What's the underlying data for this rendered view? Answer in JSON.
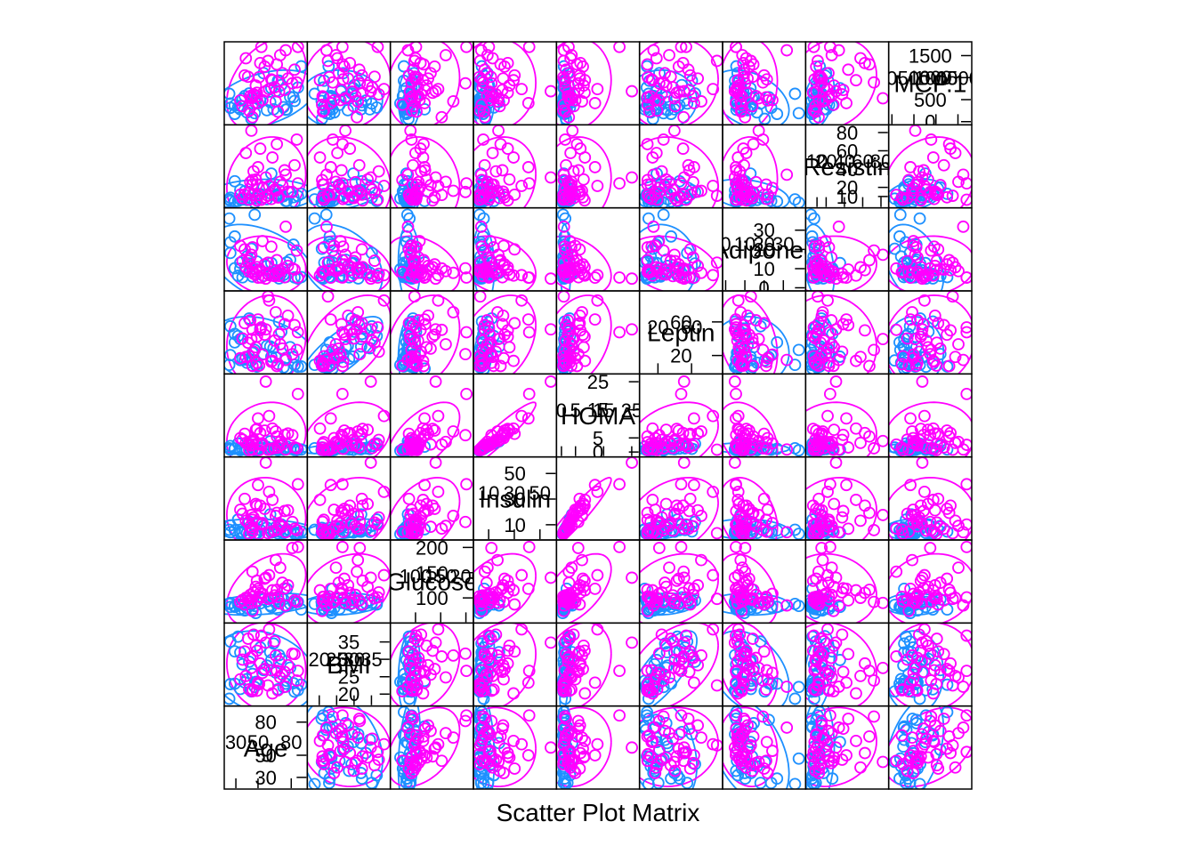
{
  "chart_data": {
    "type": "scatter",
    "title": "Scatter Plot Matrix",
    "variables": [
      "Age",
      "BMI",
      "Glucose",
      "Insulin",
      "HOMA",
      "Leptin",
      "Adiponectin",
      "Resistin",
      "MCP.1"
    ],
    "diagonal_labels": [
      "Age",
      "BMI",
      "Glucose",
      "Insulin",
      "HOMA",
      "Leptin",
      "Adiponec",
      "Resistin",
      "MCP.1"
    ],
    "ranges": [
      [
        24,
        90
      ],
      [
        18,
        39
      ],
      [
        60,
        205
      ],
      [
        2,
        59
      ],
      [
        0,
        26
      ],
      [
        4,
        91
      ],
      [
        1,
        39
      ],
      [
        3,
        83
      ],
      [
        40,
        1700
      ]
    ],
    "ticks": [
      [
        30,
        50,
        80
      ],
      [
        20,
        25,
        30,
        35
      ],
      [
        100,
        150,
        200
      ],
      [
        10,
        30,
        50
      ],
      [
        0,
        5,
        15,
        25
      ],
      [
        20,
        60
      ],
      [
        0,
        10,
        20,
        30
      ],
      [
        10,
        20,
        40,
        60,
        80
      ],
      [
        0,
        500,
        1000,
        1500
      ]
    ],
    "grid": false,
    "ellipses": true,
    "series": [
      {
        "name": "",
        "color": "#1E90FF",
        "points": [
          [
            48,
            23.5,
            70,
            2.707,
            0.467,
            8.81,
            9.702,
            7.996,
            417.1
          ],
          [
            83,
            20.69,
            92,
            3.115,
            0.707,
            8.84,
            5.429,
            4.064,
            468.8
          ],
          [
            82,
            23.12,
            91,
            4.498,
            1.01,
            17.94,
            22.43,
            9.278,
            554.7
          ],
          [
            68,
            21.37,
            77,
            3.226,
            0.613,
            9.88,
            7.169,
            12.77,
            928.2
          ],
          [
            86,
            21.11,
            92,
            3.549,
            0.805,
            6.7,
            4.82,
            10.57,
            773.9
          ],
          [
            49,
            22.85,
            92,
            3.226,
            0.732,
            6.83,
            13.68,
            10.32,
            530.4
          ],
          [
            89,
            22.7,
            77,
            4.69,
            0.891,
            6.96,
            5.59,
            12.93,
            1256
          ],
          [
            76,
            23.8,
            118,
            6.47,
            1.883,
            4.31,
            13.25,
            5.1,
            280
          ],
          [
            73,
            22,
            97,
            3.35,
            0.8,
            5.81,
            6.7,
            10.2,
            328
          ],
          [
            75,
            23,
            83,
            4.95,
            1.01,
            17.13,
            5.62,
            5.1,
            270
          ],
          [
            34,
            21.47,
            78,
            3.47,
            0.66,
            14.57,
            13.11,
            6.92,
            354.6
          ],
          [
            29,
            23.01,
            82,
            5.66,
            1.14,
            35.59,
            26.72,
            4.58,
            174.8
          ],
          [
            25,
            22.86,
            82,
            4.09,
            0.82,
            20.45,
            23.67,
            5.14,
            313.7
          ],
          [
            24,
            18.67,
            88,
            6.11,
            1.33,
            8.87,
            36.06,
            6.85,
            632.2
          ],
          [
            38,
            23.34,
            75,
            5.78,
            1.07,
            15.12,
            8.42,
            15.72,
            581.3
          ],
          [
            44,
            20.76,
            86,
            7.55,
            1.6,
            14.09,
            20.32,
            7.64,
            63.6
          ],
          [
            47,
            22.03,
            84,
            2.87,
            0.59,
            26.65,
            38.04,
            3.32,
            191.7
          ],
          [
            61,
            32.04,
            85,
            18.08,
            3.79,
            30.77,
            7.78,
            13.68,
            444.4
          ],
          [
            64,
            34.53,
            95,
            4.43,
            1.04,
            28.65,
            7.86,
            20.36,
            280
          ],
          [
            32,
            36.51,
            87,
            14.03,
            3.01,
            43.21,
            6.34,
            5.13,
            320
          ],
          [
            36,
            28.57,
            86,
            4.35,
            0.92,
            15.95,
            5.47,
            6.71,
            520
          ],
          [
            34,
            31.98,
            87,
            4.53,
            0.97,
            39.58,
            9.92,
            17.17,
            280
          ],
          [
            29,
            32.27,
            84,
            5.81,
            1.2,
            45.62,
            10.2,
            26.71,
            370
          ],
          [
            25,
            35.1,
            90,
            9.55,
            2.12,
            54.78,
            18.14,
            8.65,
            410
          ],
          [
            42,
            29.3,
            95,
            12.31,
            2.89,
            64.1,
            12.7,
            14.8,
            640
          ],
          [
            66,
            26.2,
            90,
            8.1,
            1.8,
            17.8,
            9.1,
            11.3,
            690
          ],
          [
            45,
            25.8,
            78,
            6.3,
            1.2,
            23.2,
            5.9,
            23.2,
            380
          ],
          [
            58,
            28.2,
            93,
            7.8,
            1.78,
            31.5,
            11.4,
            7.1,
            260
          ],
          [
            71,
            30.1,
            101,
            10.2,
            2.5,
            48.3,
            7.5,
            9.7,
            830
          ],
          [
            52,
            33.4,
            89,
            5.9,
            1.3,
            52.1,
            9.4,
            12.6,
            480
          ],
          [
            40,
            24.3,
            80,
            3.6,
            0.71,
            11.4,
            16.3,
            6.2,
            210
          ],
          [
            55,
            26.9,
            97,
            9.1,
            2.18,
            21.7,
            6.2,
            19.9,
            1100
          ],
          [
            79,
            27.6,
            88,
            5.1,
            1.1,
            29.9,
            14.6,
            14.2,
            560
          ],
          [
            62,
            29.8,
            82,
            3.9,
            0.8,
            18.6,
            12.9,
            35.1,
            760
          ],
          [
            69,
            31.2,
            94,
            4.8,
            1.12,
            60.4,
            4.9,
            16.8,
            930
          ]
        ]
      },
      {
        "name": "",
        "color": "#FF00FF",
        "points": [
          [
            45,
            21.3,
            102,
            13.85,
            3.49,
            7.65,
            21.06,
            23.03,
            552.4
          ],
          [
            45,
            20.83,
            74,
            4.56,
            0.83,
            7.75,
            8.24,
            28.03,
            382.9
          ],
          [
            49,
            20.96,
            94,
            12.31,
            2.85,
            11.24,
            8.41,
            23.12,
            573.6
          ],
          [
            34,
            24.24,
            92,
            21.7,
            4.92,
            16.74,
            21.82,
            12.07,
            481.9
          ],
          [
            42,
            21.36,
            93,
            2.999,
            0.688,
            19.08,
            8.46,
            6.59,
            249.9
          ],
          [
            68,
            21.08,
            102,
            6.2,
            1.56,
            9.7,
            8.04,
            8.89,
            225.9
          ],
          [
            51,
            22.89,
            103,
            2.74,
            0.697,
            8.01,
            9.35,
            11.55,
            1010
          ],
          [
            62,
            26.84,
            100,
            4.53,
            1.117,
            12.45,
            21.42,
            7.32,
            960
          ],
          [
            38,
            32.25,
            87,
            30.21,
            6.48,
            58.46,
            20.0,
            11.97,
            1050
          ],
          [
            69,
            29.4,
            89,
            10.7,
            2.35,
            45.27,
            6.2,
            9.2,
            680
          ],
          [
            49,
            32.46,
            134,
            24.89,
            8.22,
            42.38,
            10.79,
            5.77,
            656.4
          ],
          [
            53,
            36.79,
            101,
            10.18,
            2.54,
            53.5,
            5.36,
            6.47,
            1698
          ],
          [
            86,
            26.67,
            201,
            41.61,
            20.63,
            47.65,
            5.36,
            24.37,
            1698
          ],
          [
            81,
            31.64,
            199,
            12.16,
            5.97,
            21.57,
            10.15,
            14.92,
            870
          ],
          [
            45,
            30.82,
            152,
            7.01,
            2.63,
            50.53,
            10.06,
            11.73,
            99.6
          ],
          [
            67,
            26.7,
            116,
            19.3,
            5.53,
            7.48,
            14.4,
            67.31,
            1300
          ],
          [
            50,
            23.3,
            118,
            41.0,
            11.94,
            62.9,
            5.3,
            42.1,
            420
          ],
          [
            72,
            25.6,
            130,
            8.4,
            2.69,
            28.2,
            9.7,
            22.5,
            1100
          ],
          [
            65,
            35.2,
            105,
            5.4,
            1.4,
            37.8,
            6.1,
            17.6,
            780
          ],
          [
            57,
            34.8,
            140,
            58.46,
            25.05,
            51.1,
            4.8,
            30.8,
            690
          ],
          [
            44,
            27.5,
            90,
            17.6,
            3.9,
            39.6,
            17.2,
            82.1,
            530
          ],
          [
            77,
            28.3,
            125,
            21.3,
            6.57,
            67.4,
            11.4,
            15.3,
            980
          ],
          [
            59,
            22.5,
            98,
            3.4,
            0.82,
            90.3,
            13.1,
            10.8,
            1380
          ],
          [
            46,
            37.1,
            111,
            15.7,
            4.3,
            24.5,
            7.3,
            37.5,
            620
          ],
          [
            83,
            31.5,
            95,
            6.9,
            1.62,
            56.2,
            9.5,
            44.2,
            1180
          ],
          [
            63,
            20.2,
            115,
            29.4,
            8.34,
            13.6,
            6.4,
            52.7,
            940
          ],
          [
            54,
            26.1,
            108,
            11.3,
            3.01,
            21.1,
            24.3,
            19.4,
            490
          ],
          [
            70,
            24.8,
            160,
            9.1,
            3.59,
            33.4,
            8.7,
            26.1,
            1510
          ],
          [
            36,
            29.9,
            96,
            18.6,
            4.4,
            40.3,
            13.9,
            8.3,
            350
          ],
          [
            48,
            33.9,
            122,
            26.2,
            7.89,
            29.8,
            6.9,
            28.6,
            820
          ],
          [
            75,
            22.1,
            85,
            4.2,
            0.88,
            14.7,
            31.8,
            33.9,
            1620
          ],
          [
            60,
            38.6,
            145,
            35.7,
            12.8,
            85.5,
            6.6,
            21.6,
            740
          ],
          [
            39,
            25.2,
            100,
            13.1,
            3.23,
            18.3,
            10.7,
            57.6,
            1440
          ],
          [
            56,
            27.2,
            138,
            22.4,
            7.62,
            44.8,
            12.2,
            9.1,
            1250
          ],
          [
            43,
            30.4,
            106,
            8.8,
            2.3,
            61.9,
            15.8,
            25.7,
            580
          ],
          [
            85,
            23.9,
            92,
            5.8,
            1.31,
            26.6,
            19.4,
            72.3,
            890
          ],
          [
            66,
            31.1,
            175,
            16.9,
            7.3,
            71.5,
            7.8,
            16.2,
            460
          ],
          [
            52,
            28.8,
            110,
            24.9,
            6.75,
            49.9,
            9.2,
            62.4,
            1330
          ],
          [
            41,
            35.9,
            99,
            11.7,
            2.86,
            35.2,
            14.1,
            13.9,
            1020
          ],
          [
            74,
            26.4,
            119,
            20.7,
            6.08,
            57.3,
            5.5,
            38.7,
            720
          ]
        ]
      }
    ]
  }
}
